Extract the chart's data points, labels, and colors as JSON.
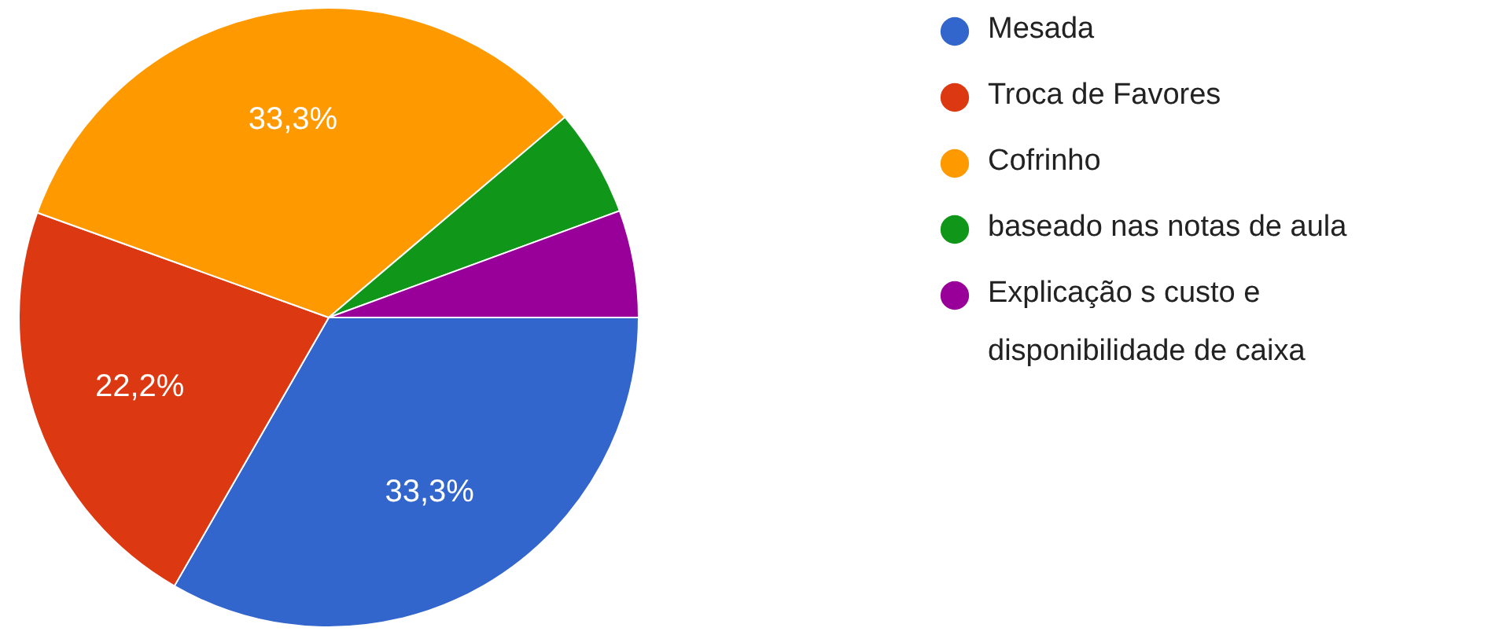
{
  "chart_data": {
    "type": "pie",
    "categories": [
      "Mesada",
      "Troca de Favores",
      "Cofrinho",
      "baseado nas notas de aula",
      "Explicação s custo e disponibilidade de caixa"
    ],
    "values": [
      33.3,
      22.2,
      33.3,
      5.6,
      5.6
    ],
    "colors": [
      "#3366cc",
      "#dc3912",
      "#ff9900",
      "#109618",
      "#990099"
    ],
    "value_labels": [
      "33,3%",
      "22,2%",
      "33,3%",
      null,
      null
    ],
    "legend": "right"
  }
}
